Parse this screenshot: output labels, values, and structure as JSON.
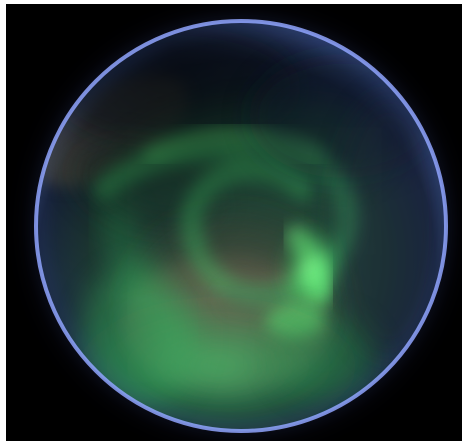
{
  "image": {
    "subject": "globe-aurora",
    "colors": {
      "frame": "#ffffff",
      "space": "#000000",
      "limb_glow": "#8fa2ff",
      "aurora_bright": "#67f07a",
      "aurora_mid": "#2bb35a",
      "aurora_dark": "#0c3b27",
      "night_side": "#121a2d",
      "continent_brown": "#6b5b4a",
      "continent_gray": "#5b6f56"
    }
  }
}
